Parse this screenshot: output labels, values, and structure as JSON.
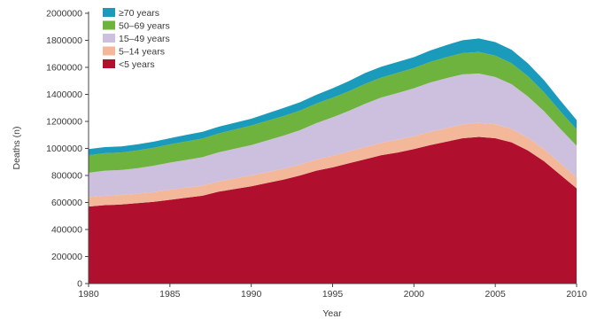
{
  "chart_data": {
    "type": "area",
    "stacked": true,
    "xlabel": "Year",
    "ylabel": "Deaths (n)",
    "xlim": [
      1980,
      2010
    ],
    "ylim": [
      0,
      2000000
    ],
    "x_ticks": [
      1980,
      1985,
      1990,
      1995,
      2000,
      2005,
      2010
    ],
    "x_tick_labels": [
      "1980",
      "1985",
      "1990",
      "1995",
      "2000",
      "2005",
      "2010"
    ],
    "y_ticks": [
      0,
      200000,
      400000,
      600000,
      800000,
      1000000,
      1200000,
      1400000,
      1600000,
      1800000,
      2000000
    ],
    "y_tick_labels": [
      "0",
      "200000",
      "400000",
      "600000",
      "800000",
      "1000000",
      "1200000",
      "1400000",
      "1600000",
      "1800000",
      "2000000"
    ],
    "grid": false,
    "legend_position": "top-left",
    "x": [
      1980,
      1981,
      1982,
      1983,
      1984,
      1985,
      1986,
      1987,
      1988,
      1989,
      1990,
      1991,
      1992,
      1993,
      1994,
      1995,
      1996,
      1997,
      1998,
      1999,
      2000,
      2001,
      2002,
      2003,
      2004,
      2005,
      2006,
      2007,
      2008,
      2009,
      2010
    ],
    "series": [
      {
        "name": "<5 years",
        "color": "#b0102e",
        "values": [
          570000,
          580000,
          585000,
          595000,
          605000,
          620000,
          635000,
          650000,
          680000,
          700000,
          720000,
          745000,
          770000,
          800000,
          835000,
          860000,
          890000,
          920000,
          950000,
          970000,
          995000,
          1025000,
          1050000,
          1075000,
          1085000,
          1075000,
          1045000,
          985000,
          905000,
          805000,
          705000
        ]
      },
      {
        "name": "5–14 years",
        "color": "#f3b79a",
        "values": [
          70000,
          70000,
          70000,
          70000,
          72000,
          75000,
          75000,
          75000,
          76000,
          78000,
          80000,
          80000,
          80000,
          80000,
          82000,
          85000,
          88000,
          90000,
          92000,
          95000,
          95000,
          98000,
          100000,
          103000,
          104000,
          104000,
          100000,
          95000,
          90000,
          85000,
          80000
        ]
      },
      {
        "name": "15–49 years",
        "color": "#cdc0de",
        "values": [
          180000,
          185000,
          185000,
          188000,
          195000,
          200000,
          205000,
          210000,
          215000,
          220000,
          225000,
          235000,
          245000,
          255000,
          270000,
          285000,
          300000,
          320000,
          335000,
          345000,
          355000,
          365000,
          370000,
          370000,
          365000,
          350000,
          330000,
          305000,
          280000,
          255000,
          235000
        ]
      },
      {
        "name": "50–69 years",
        "color": "#6fb33f",
        "values": [
          130000,
          130000,
          130000,
          132000,
          133000,
          135000,
          137000,
          138000,
          140000,
          142000,
          145000,
          145000,
          145000,
          145000,
          145000,
          145000,
          145000,
          148000,
          148000,
          150000,
          150000,
          152000,
          155000,
          158000,
          160000,
          158000,
          155000,
          150000,
          140000,
          130000,
          120000
        ]
      },
      {
        "name": "≥70 years",
        "color": "#1a9bbb",
        "values": [
          45000,
          45000,
          45000,
          45000,
          45000,
          45000,
          48000,
          50000,
          50000,
          50000,
          50000,
          55000,
          60000,
          62000,
          65000,
          70000,
          75000,
          80000,
          80000,
          80000,
          80000,
          85000,
          90000,
          95000,
          100000,
          100000,
          100000,
          95000,
          90000,
          80000,
          70000
        ]
      }
    ]
  }
}
